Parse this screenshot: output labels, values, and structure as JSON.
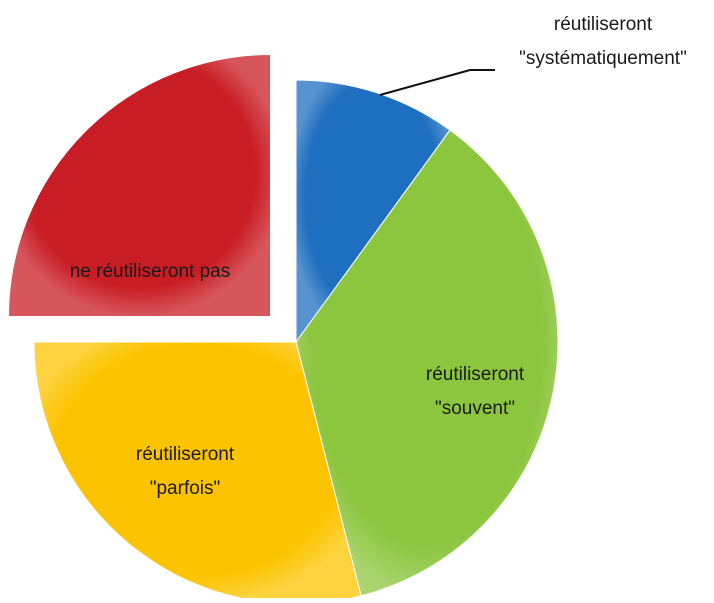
{
  "chart_data": {
    "type": "pie",
    "categories": [
      "réutiliseront \"systématiquement\"",
      "réutiliseront \"souvent\"",
      "réutiliseront \"parfois\"",
      "ne réutiliseront pas"
    ],
    "values": [
      10,
      36,
      29,
      25
    ],
    "colors": [
      "#1f6fc0",
      "#8cc63f",
      "#fcc400",
      "#c91d25"
    ],
    "explode": [
      false,
      false,
      false,
      true
    ]
  }
}
